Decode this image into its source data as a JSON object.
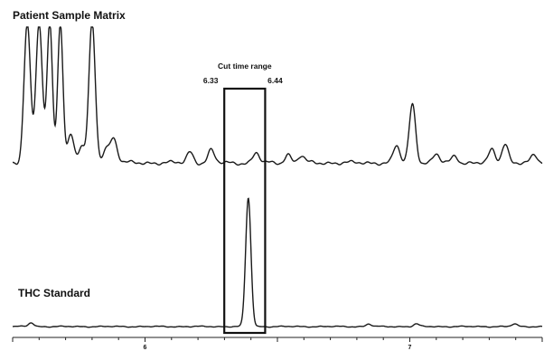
{
  "chart_data": {
    "type": "line",
    "title": "",
    "xlabel": "",
    "ylabel": "",
    "x_unit": "min",
    "xlim": [
      5.5,
      7.5
    ],
    "x_ticks": [
      {
        "value": 6,
        "label": "6"
      },
      {
        "value": 7,
        "label": "7"
      }
    ],
    "grid": false,
    "legend": "none",
    "series": [
      {
        "name": "Patient Sample Matrix",
        "color": "#1a1a1a",
        "description_level": "normalized relative intensity (1.0 = off-scale)",
        "baseline": 0.0,
        "peaks": [
          {
            "rt": 5.555,
            "height": 1.0,
            "width": 0.012
          },
          {
            "rt": 5.6,
            "height": 1.0,
            "width": 0.012
          },
          {
            "rt": 5.64,
            "height": 1.0,
            "width": 0.01
          },
          {
            "rt": 5.68,
            "height": 1.0,
            "width": 0.01
          },
          {
            "rt": 5.72,
            "height": 0.2,
            "width": 0.012
          },
          {
            "rt": 5.76,
            "height": 0.12,
            "width": 0.01
          },
          {
            "rt": 5.8,
            "height": 1.0,
            "width": 0.012
          },
          {
            "rt": 5.85,
            "height": 0.09,
            "width": 0.01
          },
          {
            "rt": 5.88,
            "height": 0.18,
            "width": 0.014
          },
          {
            "rt": 6.17,
            "height": 0.08,
            "width": 0.012
          },
          {
            "rt": 6.25,
            "height": 0.09,
            "width": 0.012
          },
          {
            "rt": 6.42,
            "height": 0.07,
            "width": 0.012
          },
          {
            "rt": 6.54,
            "height": 0.06,
            "width": 0.012
          },
          {
            "rt": 6.59,
            "height": 0.05,
            "width": 0.012
          },
          {
            "rt": 6.95,
            "height": 0.12,
            "width": 0.012
          },
          {
            "rt": 7.01,
            "height": 0.42,
            "width": 0.012
          },
          {
            "rt": 7.1,
            "height": 0.06,
            "width": 0.012
          },
          {
            "rt": 7.17,
            "height": 0.05,
            "width": 0.012
          },
          {
            "rt": 7.31,
            "height": 0.09,
            "width": 0.012
          },
          {
            "rt": 7.36,
            "height": 0.14,
            "width": 0.012
          },
          {
            "rt": 7.47,
            "height": 0.05,
            "width": 0.012
          }
        ]
      },
      {
        "name": "THC Standard",
        "color": "#1a1a1a",
        "description_level": "normalized relative intensity",
        "baseline": 0.0,
        "peaks": [
          {
            "rt": 5.57,
            "height": 0.03,
            "width": 0.01
          },
          {
            "rt": 6.39,
            "height": 1.0,
            "width": 0.01
          },
          {
            "rt": 6.845,
            "height": 0.02,
            "width": 0.01
          },
          {
            "rt": 7.025,
            "height": 0.02,
            "width": 0.01
          },
          {
            "rt": 7.395,
            "height": 0.02,
            "width": 0.01
          }
        ]
      }
    ],
    "annotations": {
      "cut_window": {
        "title": "Cut time range",
        "start": 6.33,
        "end": 6.44,
        "start_label": "6.33",
        "end_label": "6.44"
      }
    }
  }
}
